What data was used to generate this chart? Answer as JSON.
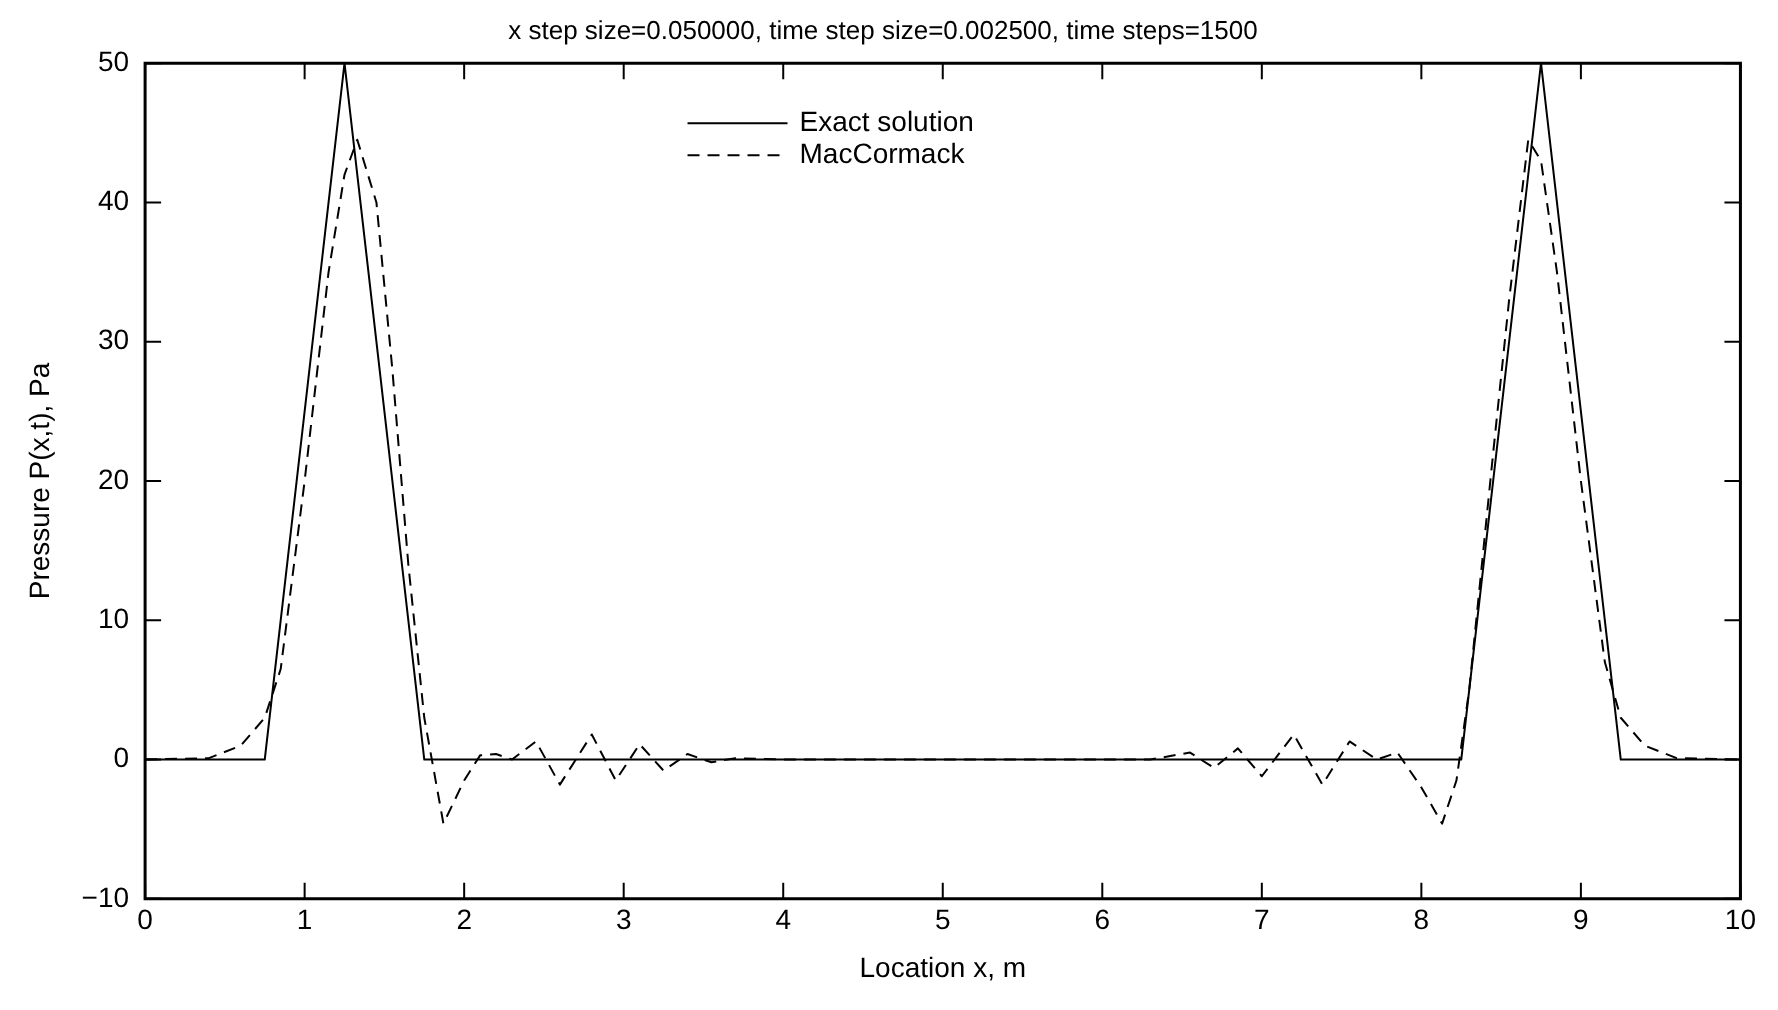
{
  "chart_data": {
    "type": "line",
    "title": "x step size=0.050000, time step size=0.002500, time steps=1500",
    "xlabel": "Location x, m",
    "ylabel": "Pressure P(x,t), Pa",
    "xlim": [
      0,
      10
    ],
    "xticks": [
      0,
      1,
      2,
      3,
      4,
      5,
      6,
      7,
      8,
      9,
      10
    ],
    "ylim": [
      -10,
      50
    ],
    "yticks": [
      {
        "value": -10,
        "label": "−10"
      },
      0,
      10,
      20,
      30,
      40,
      50
    ],
    "grid": false,
    "legend": "top",
    "marker": "none",
    "series": [
      {
        "name": "Exact solution",
        "color": "#000000",
        "line_style": "solid",
        "x": [
          0,
          0.75,
          1.25,
          1.75,
          8.25,
          8.75,
          9.25,
          10
        ],
        "values": [
          0,
          0,
          50,
          0,
          0,
          50,
          0,
          0
        ]
      },
      {
        "name": "MacCormack",
        "color": "#000000",
        "line_style": "dashed",
        "x": [
          0,
          0.4,
          0.6,
          0.75,
          0.85,
          1.0,
          1.15,
          1.25,
          1.33,
          1.45,
          1.55,
          1.65,
          1.75,
          1.87,
          2.0,
          2.1,
          2.2,
          2.3,
          2.45,
          2.6,
          2.8,
          2.95,
          3.1,
          3.25,
          3.4,
          3.55,
          3.7,
          4.0,
          5.0,
          6.3,
          6.55,
          6.7,
          6.85,
          7.0,
          7.2,
          7.38,
          7.55,
          7.72,
          7.85,
          8.0,
          8.13,
          8.22,
          8.3,
          8.45,
          8.55,
          8.67,
          8.75,
          8.85,
          9.0,
          9.15,
          9.25,
          9.4,
          9.6,
          10
        ],
        "values": [
          0,
          0.1,
          1,
          3,
          6.5,
          20,
          35,
          42,
          44.5,
          40,
          28,
          14,
          3,
          -4.6,
          -1.5,
          0.3,
          0.4,
          0,
          1.3,
          -1.8,
          1.8,
          -1.5,
          1.1,
          -0.8,
          0.4,
          -0.2,
          0.1,
          0,
          0,
          0,
          0.5,
          -0.6,
          0.8,
          -1.2,
          1.8,
          -1.8,
          1.3,
          0,
          0.5,
          -2,
          -4.6,
          -1.5,
          5,
          22,
          33,
          44.5,
          43,
          35,
          20,
          7,
          3,
          1,
          0.1,
          0
        ]
      }
    ]
  }
}
